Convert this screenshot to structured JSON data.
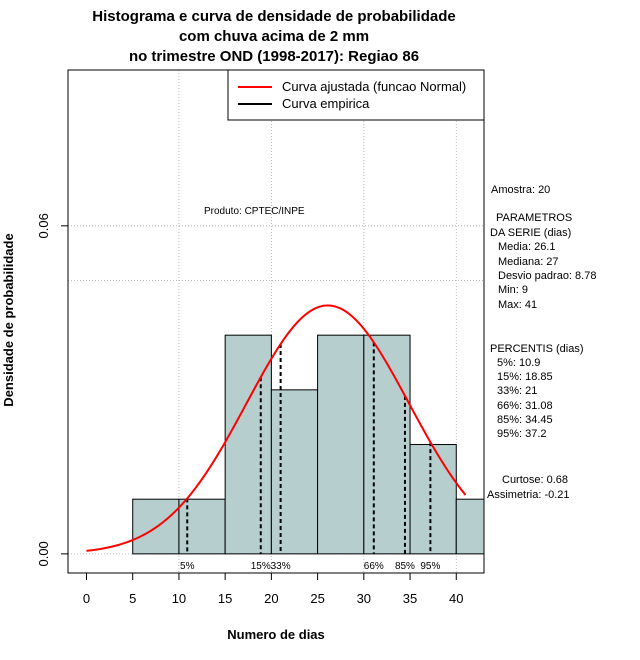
{
  "chart_data": {
    "type": "histogram",
    "title": [
      "Histograma e curva de densidade de probabilidade",
      "com chuva acima de 2 mm",
      "no trimestre OND (1998-2017): Regiao 86"
    ],
    "xlabel": "Numero de dias",
    "ylabel": "Densidade de probabilidade",
    "xlim": [
      -2,
      43
    ],
    "ylim": [
      -0.0035,
      0.0885
    ],
    "x_ticks": [
      0,
      5,
      10,
      15,
      20,
      25,
      30,
      35,
      40
    ],
    "y_ticks": [
      0.0,
      0.06
    ],
    "y_tick_labels": [
      "0.00",
      "0.06"
    ],
    "bins": [
      {
        "from": 5,
        "to": 10,
        "density": 0.01
      },
      {
        "from": 10,
        "to": 15,
        "density": 0.01
      },
      {
        "from": 15,
        "to": 20,
        "density": 0.04
      },
      {
        "from": 20,
        "to": 25,
        "density": 0.03
      },
      {
        "from": 25,
        "to": 30,
        "density": 0.04
      },
      {
        "from": 30,
        "to": 35,
        "density": 0.04
      },
      {
        "from": 35,
        "to": 40,
        "density": 0.02
      },
      {
        "from": 40,
        "to": 45,
        "density": 0.01
      }
    ],
    "normal_fit": {
      "mean": 26.1,
      "sd": 8.78,
      "from": 0,
      "to": 41
    },
    "reference_hline": 0.05,
    "grid_x": [
      10,
      20,
      30,
      40
    ],
    "percentile_lines": [
      {
        "label": "5%",
        "x": 10.9
      },
      {
        "label": "15%",
        "x": 18.85
      },
      {
        "label": "33%",
        "x": 21
      },
      {
        "label": "66%",
        "x": 31.08
      },
      {
        "label": "85%",
        "x": 34.45
      },
      {
        "label": "95%",
        "x": 37.2
      }
    ],
    "legend": [
      {
        "label": "Curva ajustada (funcao Normal)",
        "color": "#ff0000"
      },
      {
        "label": "Curva empirica",
        "color": "#000000"
      }
    ],
    "product_label": "Produto: CPTEC/INPE",
    "stats_text": [
      "Amostra: 20",
      "PARAMETROS",
      "DA SERIE (dias)",
      "Media: 26.1",
      "Mediana: 27",
      "Desvio padrao: 8.78",
      "Min: 9",
      "Max: 41",
      "PERCENTIS (dias)",
      "5%: 10.9",
      "15%: 18.85",
      "33%: 21",
      "66%: 31.08",
      "85%: 34.45",
      "95%: 37.2",
      "Curtose: 0.68",
      "Assimetria: -0.21"
    ]
  },
  "colors": {
    "bar_fill": "#b6cece",
    "curve": "#ff0000",
    "grid": "#a9a9a9"
  }
}
